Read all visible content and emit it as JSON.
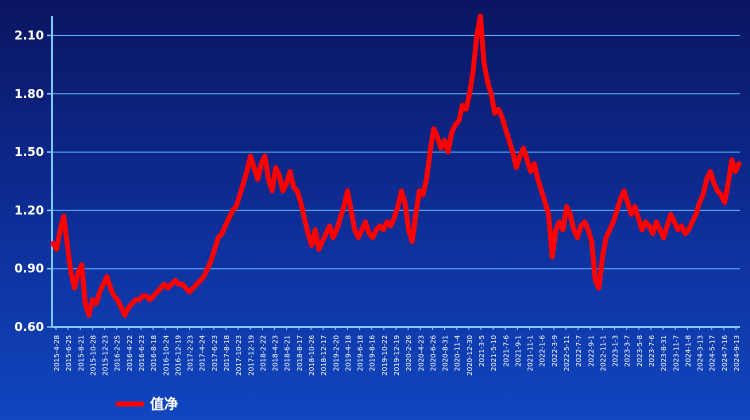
{
  "chart_data": {
    "type": "line",
    "title": "",
    "xlabel": "",
    "ylabel": "",
    "ylim": [
      0.6,
      2.2
    ],
    "yticks": [
      "0.60",
      "0.90",
      "1.20",
      "1.50",
      "1.80",
      "2.10"
    ],
    "grid": true,
    "legend_position": "bottom-left",
    "x_tick_labels": [
      "2015-4-28",
      "2015-6-25",
      "2015-8-21",
      "2015-10-28",
      "2015-12-23",
      "2016-2-25",
      "2016-4-22",
      "2016-6-23",
      "2016-8-18",
      "2016-10-24",
      "2016-12-19",
      "2017-2-23",
      "2017-4-24",
      "2017-6-23",
      "2017-8-18",
      "2017-10-23",
      "2017-12-19",
      "2018-2-22",
      "2018-4-23",
      "2018-6-21",
      "2018-8-17",
      "2018-10-26",
      "2018-12-17",
      "2019-2-20",
      "2019-4-18",
      "2019-6-18",
      "2019-8-16",
      "2019-10-22",
      "2019-12-19",
      "2020-2-26",
      "2020-4-23",
      "2020-6-26",
      "2020-8-31",
      "2020-11-4",
      "2020-12-30",
      "2021-3-5",
      "2021-5-10",
      "2021-7-6",
      "2021-9-1",
      "2021-11-1",
      "2022-1-6",
      "2022-3-9",
      "2022-5-11",
      "2022-7-7",
      "2022-9-1",
      "2022-11-1",
      "2023-1-3",
      "2023-3-7",
      "2023-5-8",
      "2023-7-6",
      "2023-8-31",
      "2023-11-7",
      "2024-1-8",
      "2024-3-13",
      "2024-5-17",
      "2024-7-16",
      "2024-9-13"
    ],
    "series": [
      {
        "name": "值净",
        "color": "#ff0000",
        "values": [
          1.03,
          1.0,
          1.1,
          1.17,
          1.02,
          0.88,
          0.8,
          0.88,
          0.92,
          0.72,
          0.66,
          0.74,
          0.72,
          0.78,
          0.82,
          0.86,
          0.8,
          0.76,
          0.74,
          0.7,
          0.66,
          0.7,
          0.72,
          0.74,
          0.74,
          0.76,
          0.76,
          0.74,
          0.76,
          0.78,
          0.8,
          0.82,
          0.8,
          0.82,
          0.84,
          0.82,
          0.82,
          0.8,
          0.78,
          0.8,
          0.82,
          0.84,
          0.86,
          0.9,
          0.94,
          1.0,
          1.06,
          1.08,
          1.12,
          1.16,
          1.2,
          1.22,
          1.28,
          1.34,
          1.4,
          1.48,
          1.42,
          1.36,
          1.44,
          1.48,
          1.36,
          1.3,
          1.42,
          1.38,
          1.3,
          1.34,
          1.4,
          1.32,
          1.3,
          1.24,
          1.16,
          1.08,
          1.02,
          1.1,
          1.0,
          1.04,
          1.08,
          1.12,
          1.06,
          1.1,
          1.16,
          1.22,
          1.3,
          1.2,
          1.1,
          1.06,
          1.1,
          1.14,
          1.08,
          1.06,
          1.1,
          1.12,
          1.1,
          1.14,
          1.12,
          1.16,
          1.22,
          1.3,
          1.24,
          1.1,
          1.04,
          1.18,
          1.3,
          1.28,
          1.36,
          1.5,
          1.62,
          1.58,
          1.52,
          1.56,
          1.5,
          1.6,
          1.64,
          1.66,
          1.74,
          1.72,
          1.8,
          1.92,
          2.1,
          2.2,
          1.96,
          1.86,
          1.8,
          1.7,
          1.72,
          1.68,
          1.62,
          1.56,
          1.5,
          1.42,
          1.48,
          1.52,
          1.46,
          1.4,
          1.44,
          1.36,
          1.3,
          1.24,
          1.18,
          0.96,
          1.1,
          1.14,
          1.1,
          1.22,
          1.18,
          1.1,
          1.06,
          1.12,
          1.14,
          1.1,
          1.04,
          0.84,
          0.8,
          0.96,
          1.06,
          1.1,
          1.14,
          1.2,
          1.26,
          1.3,
          1.24,
          1.18,
          1.22,
          1.16,
          1.1,
          1.14,
          1.12,
          1.08,
          1.14,
          1.1,
          1.06,
          1.12,
          1.18,
          1.14,
          1.1,
          1.12,
          1.08,
          1.1,
          1.14,
          1.18,
          1.24,
          1.28,
          1.36,
          1.4,
          1.34,
          1.3,
          1.28,
          1.24,
          1.34,
          1.46,
          1.4,
          1.44
        ]
      }
    ]
  },
  "legend": {
    "label": "值净",
    "color": "#ff0000"
  }
}
